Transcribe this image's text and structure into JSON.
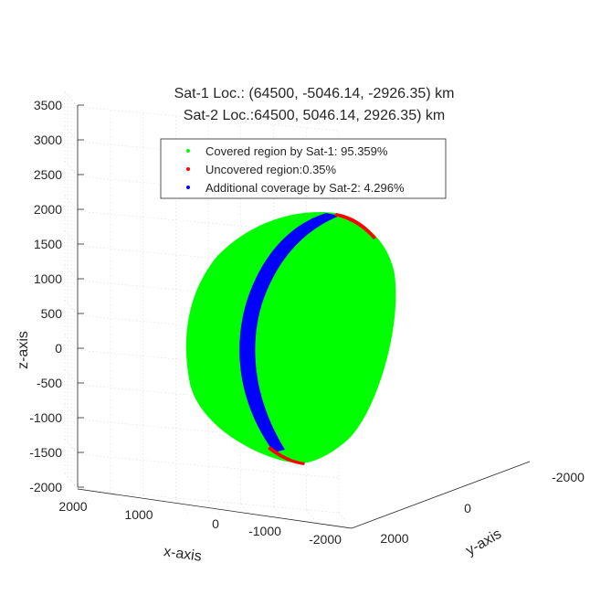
{
  "chart_data": {
    "type": "scatter3d",
    "title": [
      "Sat-1 Loc.: (64500, -5046.14, -2926.35) km",
      "Sat-2 Loc.:64500, 5046.14, 2926.35) km"
    ],
    "xlabel": "x-axis",
    "ylabel": "y-axis",
    "zlabel": "z-axis",
    "xlim": [
      -2000,
      2000
    ],
    "ylim": [
      -2000,
      2000
    ],
    "zlim": [
      -2000,
      3500
    ],
    "x_ticks": [
      "2000",
      "1000",
      "0",
      "-1000",
      "-2000"
    ],
    "y_ticks": [
      "-2000",
      "0",
      "2000"
    ],
    "z_ticks": [
      "3500",
      "3000",
      "2500",
      "2000",
      "1500",
      "1000",
      "500",
      "0",
      "-500",
      "-1000",
      "-1500",
      "-2000"
    ],
    "grid": true,
    "legend_position": "top",
    "series": [
      {
        "name": "Covered region by Sat-1: 95.359%",
        "color": "#00ff00",
        "share_percent": 95.359
      },
      {
        "name": "Uncovered region:0.35%",
        "color": "#ff0000",
        "share_percent": 0.35
      },
      {
        "name": "Additional coverage by Sat-2: 4.296%",
        "color": "#0000ff",
        "share_percent": 4.296
      }
    ]
  }
}
